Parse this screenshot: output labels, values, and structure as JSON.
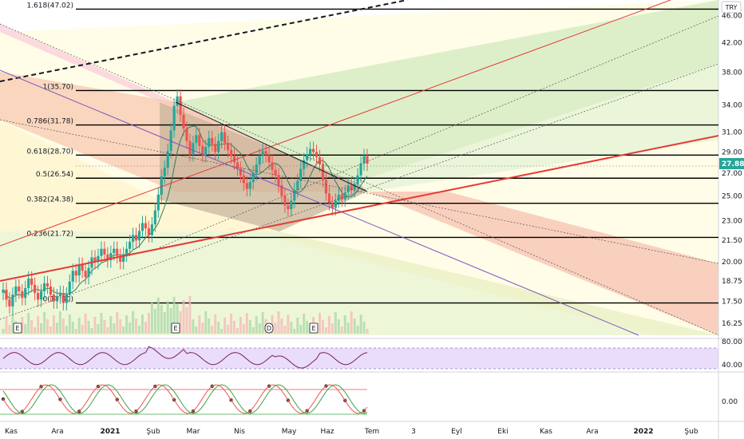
{
  "currency_label": "TRY",
  "current_price": "27.88",
  "colors": {
    "up": "#26a69a",
    "down": "#ef5350",
    "fib_line": "#000000",
    "trend_red": "#e53935",
    "trend_dash": "#131722",
    "channel_purple": "#7e57c2",
    "rsi_line": "#7b1f5a",
    "rsi_band": "#e9ddfa",
    "price_tag_bg": "#26a69a"
  },
  "fib_levels": [
    {
      "label": "1.618(47.02)",
      "value": 47.02
    },
    {
      "label": "1(35.70)",
      "value": 35.7
    },
    {
      "label": "0.786(31.78)",
      "value": 31.78
    },
    {
      "label": "0.618(28.70)",
      "value": 28.7
    },
    {
      "label": "0.5(26.54)",
      "value": 26.54
    },
    {
      "label": "0.382(24.38)",
      "value": 24.38
    },
    {
      "label": "0.236(21.72)",
      "value": 21.72
    },
    {
      "label": "0(17.40)",
      "value": 17.4
    }
  ],
  "price_axis_ticks": [
    "46.00",
    "42.00",
    "38.00",
    "34.00",
    "31.00",
    "29.00",
    "27.00",
    "25.00",
    "23.00",
    "21.50",
    "20.00",
    "18.75",
    "17.50",
    "16.25"
  ],
  "rsi_axis_ticks": [
    "80.00",
    "40.00"
  ],
  "osc_axis_ticks": [
    "0.00"
  ],
  "time_axis": [
    "Kas",
    "Ara",
    "2021",
    "Şub",
    "Mar",
    "Nis",
    "May",
    "Haz",
    "Tem",
    "3",
    "Eyl",
    "Eki",
    "Kas",
    "Ara",
    "2022",
    "Şub"
  ],
  "event_markers": [
    "E",
    "E",
    "D",
    "E"
  ],
  "chart_data": {
    "type": "candlestick",
    "y_scale": "log",
    "ylim": [
      15.6,
      48.5
    ],
    "series": [
      {
        "name": "",
        "values": [
          18.2,
          17.6,
          17.2,
          17.9,
          18.4,
          18.1,
          17.7,
          18.3,
          18.9,
          18.5,
          18.0,
          17.6,
          18.1,
          18.6,
          18.4,
          17.9,
          17.5,
          17.8,
          18.0,
          17.4,
          17.9,
          18.7,
          19.4,
          19.1,
          19.8,
          19.4,
          19.0,
          19.6,
          20.3,
          20.0,
          20.4,
          20.9,
          20.5,
          20.1,
          20.6,
          20.9,
          20.4,
          20.0,
          20.5,
          20.9,
          21.4,
          21.9,
          21.5,
          22.2,
          22.8,
          22.4,
          21.9,
          22.7,
          23.8,
          25.1,
          26.7,
          27.5,
          29.1,
          31.2,
          33.9,
          35.0,
          32.9,
          31.4,
          30.1,
          28.8,
          29.9,
          30.7,
          29.6,
          28.7,
          29.5,
          30.4,
          29.8,
          29.0,
          30.1,
          31.0,
          29.9,
          29.2,
          28.6,
          28.0,
          27.4,
          26.8,
          26.1,
          25.6,
          26.2,
          27.0,
          27.8,
          28.6,
          29.1,
          28.7,
          28.0,
          27.3,
          26.8,
          25.9,
          25.0,
          24.2,
          23.9,
          24.6,
          25.5,
          26.3,
          27.4,
          28.2,
          28.8,
          29.3,
          29.0,
          28.5,
          27.8,
          26.4,
          25.2,
          24.4,
          24.0,
          24.6,
          25.1,
          24.7,
          25.3,
          25.9,
          25.5,
          26.0,
          26.8,
          27.9,
          28.6,
          27.88
        ]
      }
    ],
    "fib_ratios": [
      1.618,
      1,
      0.786,
      0.618,
      0.5,
      0.382,
      0.236,
      0
    ],
    "rsi": {
      "ylim": [
        20,
        100
      ],
      "levels": [
        70,
        30
      ]
    },
    "price_axis_label": "TRY"
  }
}
